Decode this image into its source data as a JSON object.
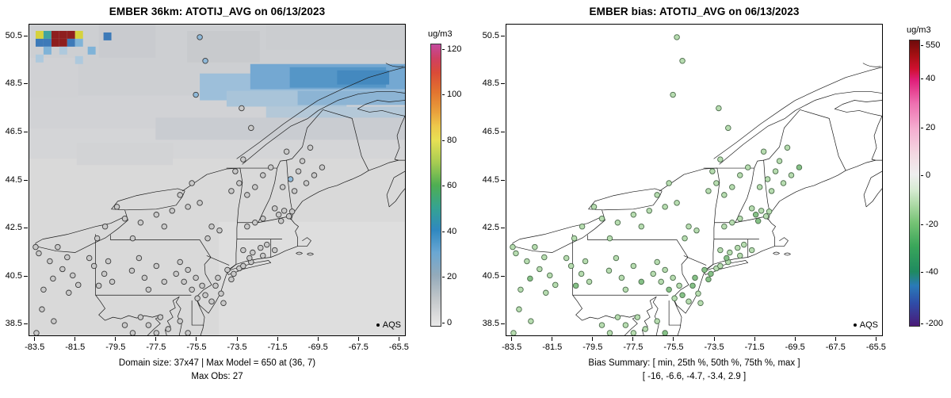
{
  "panels": [
    {
      "title": "EMBER 36km: ATOTIJ_AVG on 06/13/2023",
      "captions": [
        "Domain size: 37x47 | Max Model = 650 at (36, 7)",
        "Max Obs: 27"
      ],
      "legend": {
        "label": "AQS"
      },
      "colorbar": {
        "unit": "ug/m3",
        "ticks": [
          {
            "label": "120",
            "f": 0.02
          },
          {
            "label": "100",
            "f": 0.181
          },
          {
            "label": "80",
            "f": 0.342
          },
          {
            "label": "60",
            "f": 0.503
          },
          {
            "label": "40",
            "f": 0.664
          },
          {
            "label": "20",
            "f": 0.825
          },
          {
            "label": "0",
            "f": 0.986
          }
        ],
        "gradient": [
          [
            0,
            "#c44a9e"
          ],
          [
            5,
            "#cf4062"
          ],
          [
            10,
            "#da4b38"
          ],
          [
            17,
            "#e2742f"
          ],
          [
            24,
            "#e9a03c"
          ],
          [
            29,
            "#edc84b"
          ],
          [
            34,
            "#e7e054"
          ],
          [
            42,
            "#a7cc52"
          ],
          [
            50,
            "#4fae52"
          ],
          [
            58,
            "#35a391"
          ],
          [
            66,
            "#2f88c0"
          ],
          [
            74,
            "#6aa7d3"
          ],
          [
            82,
            "#93aaba"
          ],
          [
            90,
            "#bfc5c9"
          ],
          [
            97,
            "#dedede"
          ],
          [
            100,
            "#e9e9e9"
          ]
        ]
      }
    },
    {
      "title": "EMBER bias: ATOTIJ_AVG on 06/13/2023",
      "captions": [
        "Bias Summary: [ min, 25th %, 50th %, 75th %, max ]",
        "[ -16,  -6.6,  -4.7,  -3.4,  2.9 ]"
      ],
      "legend": {
        "label": "AQS"
      },
      "colorbar": {
        "unit": "ug/m3",
        "ticks": [
          {
            "label": "550",
            "f": 0.02
          },
          {
            "label": "40",
            "f": 0.138
          },
          {
            "label": "20",
            "f": 0.307
          },
          {
            "label": "0",
            "f": 0.475
          },
          {
            "label": "-20",
            "f": 0.644
          },
          {
            "label": "-40",
            "f": 0.812
          },
          {
            "label": "-200",
            "f": 0.989
          }
        ],
        "gradient": [
          [
            0,
            "#6e0b0b"
          ],
          [
            5,
            "#a30f12"
          ],
          [
            10,
            "#cf1030"
          ],
          [
            14,
            "#e01f7a"
          ],
          [
            22,
            "#ee6fb0"
          ],
          [
            31,
            "#f5aed0"
          ],
          [
            40,
            "#f3d9e2"
          ],
          [
            47,
            "#efefef"
          ],
          [
            52,
            "#d9ecd5"
          ],
          [
            58,
            "#a9d8a2"
          ],
          [
            64,
            "#74c274"
          ],
          [
            72,
            "#3aa65a"
          ],
          [
            81,
            "#1f8a60"
          ],
          [
            86,
            "#2a7ab8"
          ],
          [
            92,
            "#2f4da8"
          ],
          [
            100,
            "#4a1a78"
          ]
        ]
      }
    }
  ],
  "axes": {
    "x_tick_labels": [
      "-83.5",
      "-81.5",
      "-79.5",
      "-77.5",
      "-75.5",
      "-73.5",
      "-71.5",
      "-69.5",
      "-67.5",
      "-65.5"
    ],
    "y_tick_labels": [
      "38.5",
      "40.5",
      "42.5",
      "44.5",
      "46.5",
      "48.5",
      "50.5"
    ]
  },
  "chart_data": [
    {
      "type": "heatmap",
      "title": "EMBER 36km: ATOTIJ_AVG on 06/13/2023",
      "x_axis": {
        "ticks": [
          -83.5,
          -81.5,
          -79.5,
          -77.5,
          -75.5,
          -73.5,
          -71.5,
          -69.5,
          -67.5,
          -65.5
        ],
        "range": [
          -83.8,
          -65.2
        ]
      },
      "y_axis": {
        "ticks": [
          38.5,
          40.5,
          42.5,
          44.5,
          46.5,
          48.5,
          50.5
        ],
        "range": [
          38.0,
          51.0
        ]
      },
      "colorbar": {
        "unit": "ug/m3",
        "ticks": [
          120,
          100,
          80,
          60,
          40,
          20,
          0
        ]
      },
      "annotations": {
        "domain_size": "37x47",
        "max_model": "650 at (36, 7)",
        "max_obs": "27"
      },
      "legend": [
        "AQS"
      ],
      "description": "Gridded model concentration field (gray low values, blue band ~20-50 across the north, hotspot cells up to 650 in NW corner) with AQS station circles overlaid"
    },
    {
      "type": "scatter",
      "title": "EMBER bias: ATOTIJ_AVG on 06/13/2023",
      "x_axis": {
        "ticks": [
          -83.5,
          -81.5,
          -79.5,
          -77.5,
          -75.5,
          -73.5,
          -71.5,
          -69.5,
          -67.5,
          -65.5
        ],
        "range": [
          -83.8,
          -65.2
        ]
      },
      "y_axis": {
        "ticks": [
          38.5,
          40.5,
          42.5,
          44.5,
          46.5,
          48.5,
          50.5
        ],
        "range": [
          38.0,
          51.0
        ]
      },
      "colorbar": {
        "unit": "ug/m3",
        "ticks": [
          550,
          40,
          20,
          0,
          -20,
          -40,
          -200
        ]
      },
      "bias_summary": {
        "stats": [
          "min",
          "25th %",
          "50th %",
          "75th %",
          "max"
        ],
        "values": [
          -16,
          -6.6,
          -4.7,
          -3.4,
          2.9
        ]
      },
      "legend": [
        "AQS"
      ],
      "description": "Station bias markers, nearly all light-to-medium green (bias ~ -3 to -16 ug/m3)"
    }
  ],
  "map_render": {
    "cell_size": 10,
    "cell_palette": {
      "y": "#d6d23d",
      "t": "#3fa3a0",
      "r": "#8e1e1e",
      "b": "#3d7ab8",
      "lb": "#7fb3d8",
      "slb": "#aec9dd"
    },
    "marker_palette": {
      "g": "#c9c9c9",
      "b": "#8fb9d9",
      "lg": "#b7dcb0",
      "mg": "#86c187"
    },
    "marker_strokes": [
      "#3c3c3c",
      "#4b6b4b"
    ],
    "raster_patches": [
      [
        0,
        0,
        476,
        394,
        "#d9d9d9"
      ],
      [
        0,
        0,
        476,
        90,
        "#cdcfd2"
      ],
      [
        0,
        90,
        476,
        42,
        "#d1d2d5"
      ],
      [
        0,
        132,
        476,
        38,
        "#d4d5d7"
      ],
      [
        88,
        0,
        72,
        42,
        "#c9cbcf"
      ],
      [
        200,
        8,
        92,
        40,
        "#c8cacd"
      ],
      [
        300,
        0,
        176,
        32,
        "#cbcdd0"
      ],
      [
        0,
        42,
        62,
        50,
        "#d0d1d4"
      ],
      [
        160,
        118,
        316,
        28,
        "#c9ccd1"
      ],
      [
        60,
        150,
        122,
        28,
        "#d2d3d5"
      ],
      [
        240,
        250,
        236,
        144,
        "#dedede"
      ],
      [
        216,
        62,
        260,
        34,
        "#9dbfda"
      ],
      [
        280,
        50,
        196,
        32,
        "#74a8d2"
      ],
      [
        330,
        54,
        122,
        26,
        "#5596c7"
      ],
      [
        390,
        58,
        66,
        18,
        "#4489bf"
      ],
      [
        250,
        84,
        152,
        20,
        "#a9c4d9"
      ],
      [
        340,
        84,
        136,
        18,
        "#8cb4d4"
      ],
      [
        300,
        104,
        176,
        14,
        "#b4c8d8"
      ]
    ],
    "raster_cells": [
      [
        8,
        8,
        "y"
      ],
      [
        18,
        8,
        "t"
      ],
      [
        28,
        8,
        "r"
      ],
      [
        38,
        8,
        "r"
      ],
      [
        48,
        8,
        "r"
      ],
      [
        58,
        8,
        "y"
      ],
      [
        94,
        10,
        "b"
      ],
      [
        28,
        18,
        "r"
      ],
      [
        38,
        18,
        "r"
      ],
      [
        48,
        18,
        "b"
      ],
      [
        8,
        18,
        "b"
      ],
      [
        18,
        18,
        "b"
      ],
      [
        58,
        18,
        "lb"
      ],
      [
        18,
        28,
        "lb"
      ],
      [
        38,
        28,
        "slb"
      ],
      [
        74,
        28,
        "lb"
      ],
      [
        8,
        38,
        "slb"
      ],
      [
        58,
        40,
        "slb"
      ]
    ],
    "stations": [
      [
        12,
        290,
        "g",
        "lg"
      ],
      [
        26,
        300,
        "g",
        "lg"
      ],
      [
        42,
        310,
        "g",
        "lg"
      ],
      [
        55,
        318,
        "g",
        "lg"
      ],
      [
        30,
        322,
        "g",
        "mg"
      ],
      [
        18,
        336,
        "g",
        "lg"
      ],
      [
        48,
        295,
        "g",
        "lg"
      ],
      [
        8,
        282,
        "g",
        "lg"
      ],
      [
        62,
        330,
        "g",
        "lg"
      ],
      [
        36,
        282,
        "g",
        "lg"
      ],
      [
        50,
        340,
        "g",
        "lg"
      ],
      [
        82,
        306,
        "g",
        "lg"
      ],
      [
        95,
        316,
        "g",
        "lg"
      ],
      [
        105,
        326,
        "g",
        "lg"
      ],
      [
        88,
        331,
        "g",
        "mg"
      ],
      [
        76,
        296,
        "g",
        "lg"
      ],
      [
        100,
        300,
        "g",
        "lg"
      ],
      [
        130,
        312,
        "g",
        "lg"
      ],
      [
        146,
        321,
        "g",
        "lg"
      ],
      [
        161,
        306,
        "g",
        "lg"
      ],
      [
        151,
        336,
        "g",
        "lg"
      ],
      [
        171,
        326,
        "g",
        "mg"
      ],
      [
        139,
        296,
        "g",
        "lg"
      ],
      [
        186,
        316,
        "g",
        "lg"
      ],
      [
        196,
        326,
        "g",
        "lg"
      ],
      [
        206,
        336,
        "g",
        "mg"
      ],
      [
        211,
        321,
        "g",
        "lg"
      ],
      [
        219,
        331,
        "g",
        "lg"
      ],
      [
        191,
        301,
        "g",
        "lg"
      ],
      [
        201,
        311,
        "g",
        "lg"
      ],
      [
        223,
        343,
        "g",
        "mg"
      ],
      [
        213,
        347,
        "g",
        "lg"
      ],
      [
        236,
        331,
        "g",
        "mg"
      ],
      [
        243,
        341,
        "g",
        "lg"
      ],
      [
        231,
        351,
        "g",
        "lg"
      ],
      [
        246,
        353,
        "g",
        "lg"
      ],
      [
        239,
        321,
        "g",
        "mg"
      ],
      [
        251,
        311,
        "g",
        "mg"
      ],
      [
        259,
        316,
        "g",
        "mg"
      ],
      [
        266,
        309,
        "g",
        "lg"
      ],
      [
        256,
        323,
        "g",
        "mg"
      ],
      [
        271,
        306,
        "g",
        "lg"
      ],
      [
        281,
        301,
        "g",
        "lg"
      ],
      [
        271,
        286,
        "g",
        "lg"
      ],
      [
        283,
        289,
        "g",
        "lg"
      ],
      [
        293,
        283,
        "g",
        "lg"
      ],
      [
        301,
        279,
        "g",
        "lg"
      ],
      [
        311,
        286,
        "g",
        "lg"
      ],
      [
        279,
        296,
        "g",
        "mg"
      ],
      [
        296,
        293,
        "g",
        "lg"
      ],
      [
        316,
        241,
        "g",
        "mg"
      ],
      [
        323,
        236,
        "g",
        "lg"
      ],
      [
        329,
        243,
        "g",
        "lg"
      ],
      [
        319,
        249,
        "g",
        "mg"
      ],
      [
        311,
        233,
        "g",
        "lg"
      ],
      [
        333,
        237,
        "g",
        "lg"
      ],
      [
        286,
        251,
        "g",
        "lg"
      ],
      [
        296,
        246,
        "g",
        "lg"
      ],
      [
        276,
        256,
        "g",
        "lg"
      ],
      [
        96,
        256,
        "g",
        "lg"
      ],
      [
        121,
        246,
        "g",
        "lg"
      ],
      [
        141,
        251,
        "g",
        "lg"
      ],
      [
        161,
        241,
        "g",
        "lg"
      ],
      [
        181,
        236,
        "g",
        "lg"
      ],
      [
        201,
        231,
        "g",
        "lg"
      ],
      [
        216,
        226,
        "g",
        "lg"
      ],
      [
        171,
        256,
        "g",
        "lg"
      ],
      [
        131,
        271,
        "g",
        "lg"
      ],
      [
        111,
        231,
        "g",
        "lg"
      ],
      [
        86,
        271,
        "g",
        "lg"
      ],
      [
        191,
        216,
        "g",
        "lg"
      ],
      [
        206,
        201,
        "g",
        "lg"
      ],
      [
        231,
        256,
        "g",
        "lg"
      ],
      [
        241,
        261,
        "g",
        "lg"
      ],
      [
        226,
        271,
        "g",
        "lg"
      ],
      [
        256,
        211,
        "g",
        "lg"
      ],
      [
        266,
        201,
        "g",
        "lg"
      ],
      [
        276,
        216,
        "g",
        "lg"
      ],
      [
        286,
        206,
        "g",
        "lg"
      ],
      [
        261,
        186,
        "g",
        "lg"
      ],
      [
        271,
        171,
        "g",
        "lg"
      ],
      [
        296,
        191,
        "g",
        "lg"
      ],
      [
        306,
        181,
        "g",
        "lg"
      ],
      [
        321,
        206,
        "g",
        "lg"
      ],
      [
        331,
        196,
        "b",
        "lg"
      ],
      [
        341,
        186,
        "g",
        "lg"
      ],
      [
        351,
        201,
        "g",
        "lg"
      ],
      [
        361,
        191,
        "g",
        "lg"
      ],
      [
        336,
        211,
        "g",
        "lg"
      ],
      [
        346,
        173,
        "g",
        "lg"
      ],
      [
        326,
        161,
        "g",
        "lg"
      ],
      [
        356,
        156,
        "g",
        "lg"
      ],
      [
        371,
        181,
        "g",
        "mg"
      ],
      [
        216,
        16,
        "b",
        "lg"
      ],
      [
        223,
        46,
        "b",
        "lg"
      ],
      [
        211,
        89,
        "b",
        "lg"
      ],
      [
        269,
        106,
        "g",
        "lg"
      ],
      [
        281,
        131,
        "g",
        "lg"
      ],
      [
        151,
        381,
        "g",
        "lg"
      ],
      [
        161,
        391,
        "g",
        "lg"
      ],
      [
        176,
        386,
        "g",
        "lg"
      ],
      [
        191,
        376,
        "g",
        "lg"
      ],
      [
        141,
        371,
        "g",
        "lg"
      ],
      [
        201,
        391,
        "g",
        "mg"
      ],
      [
        131,
        391,
        "g",
        "lg"
      ],
      [
        121,
        381,
        "g",
        "lg"
      ],
      [
        166,
        371,
        "g",
        "lg"
      ],
      [
        16,
        361,
        "g",
        "lg"
      ],
      [
        31,
        376,
        "g",
        "lg"
      ],
      [
        9,
        391,
        "g",
        "lg"
      ]
    ]
  }
}
